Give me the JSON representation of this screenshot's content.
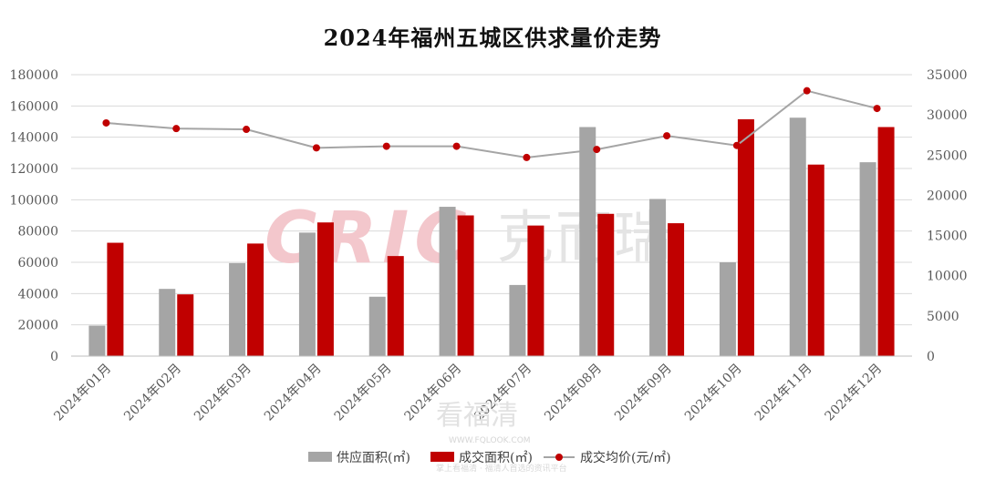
{
  "chart_data": {
    "type": "bar",
    "title": "2024年福州五城区供求量价走势",
    "categories": [
      "2024年01月",
      "2024年02月",
      "2024年03月",
      "2024年04月",
      "2024年05月",
      "2024年06月",
      "2024年07月",
      "2024年08月",
      "2024年09月",
      "2024年10月",
      "2024年11月",
      "2024年12月"
    ],
    "series": [
      {
        "name": "供应面积(㎡)",
        "type": "bar",
        "axis": "left",
        "color": "#a5a5a5",
        "values": [
          19500,
          43000,
          59500,
          79000,
          38000,
          95500,
          45500,
          146500,
          100500,
          60000,
          152500,
          124000
        ]
      },
      {
        "name": "成交面积(㎡)",
        "type": "bar",
        "axis": "left",
        "color": "#c00000",
        "values": [
          72500,
          39500,
          72000,
          85500,
          64000,
          90000,
          83500,
          91000,
          85000,
          151500,
          122500,
          146500
        ]
      },
      {
        "name": "成交均价(元/㎡)",
        "type": "line",
        "axis": "right",
        "color": "#a5a5a5",
        "marker_color": "#c00000",
        "values": [
          29000,
          28300,
          28200,
          25900,
          26100,
          26100,
          24700,
          25700,
          27400,
          26200,
          33000,
          30800
        ]
      }
    ],
    "ylim_left": [
      0,
      180000
    ],
    "yticks_left": [
      "0",
      "20000",
      "40000",
      "60000",
      "80000",
      "100000",
      "120000",
      "140000",
      "160000",
      "180000"
    ],
    "ylim_right": [
      0,
      35000
    ],
    "yticks_right": [
      "0",
      "5000",
      "10000",
      "15000",
      "20000",
      "25000",
      "30000",
      "35000"
    ],
    "grid": true,
    "legend_position": "bottom"
  },
  "watermarks": {
    "cric_logo": "CRIC",
    "cric_cn": "克而瑞",
    "kft": "看福清",
    "kft_url": "WWW.FQLOOK.COM",
    "kft_note": "掌上看福清 · 福清人首选的资讯平台"
  }
}
